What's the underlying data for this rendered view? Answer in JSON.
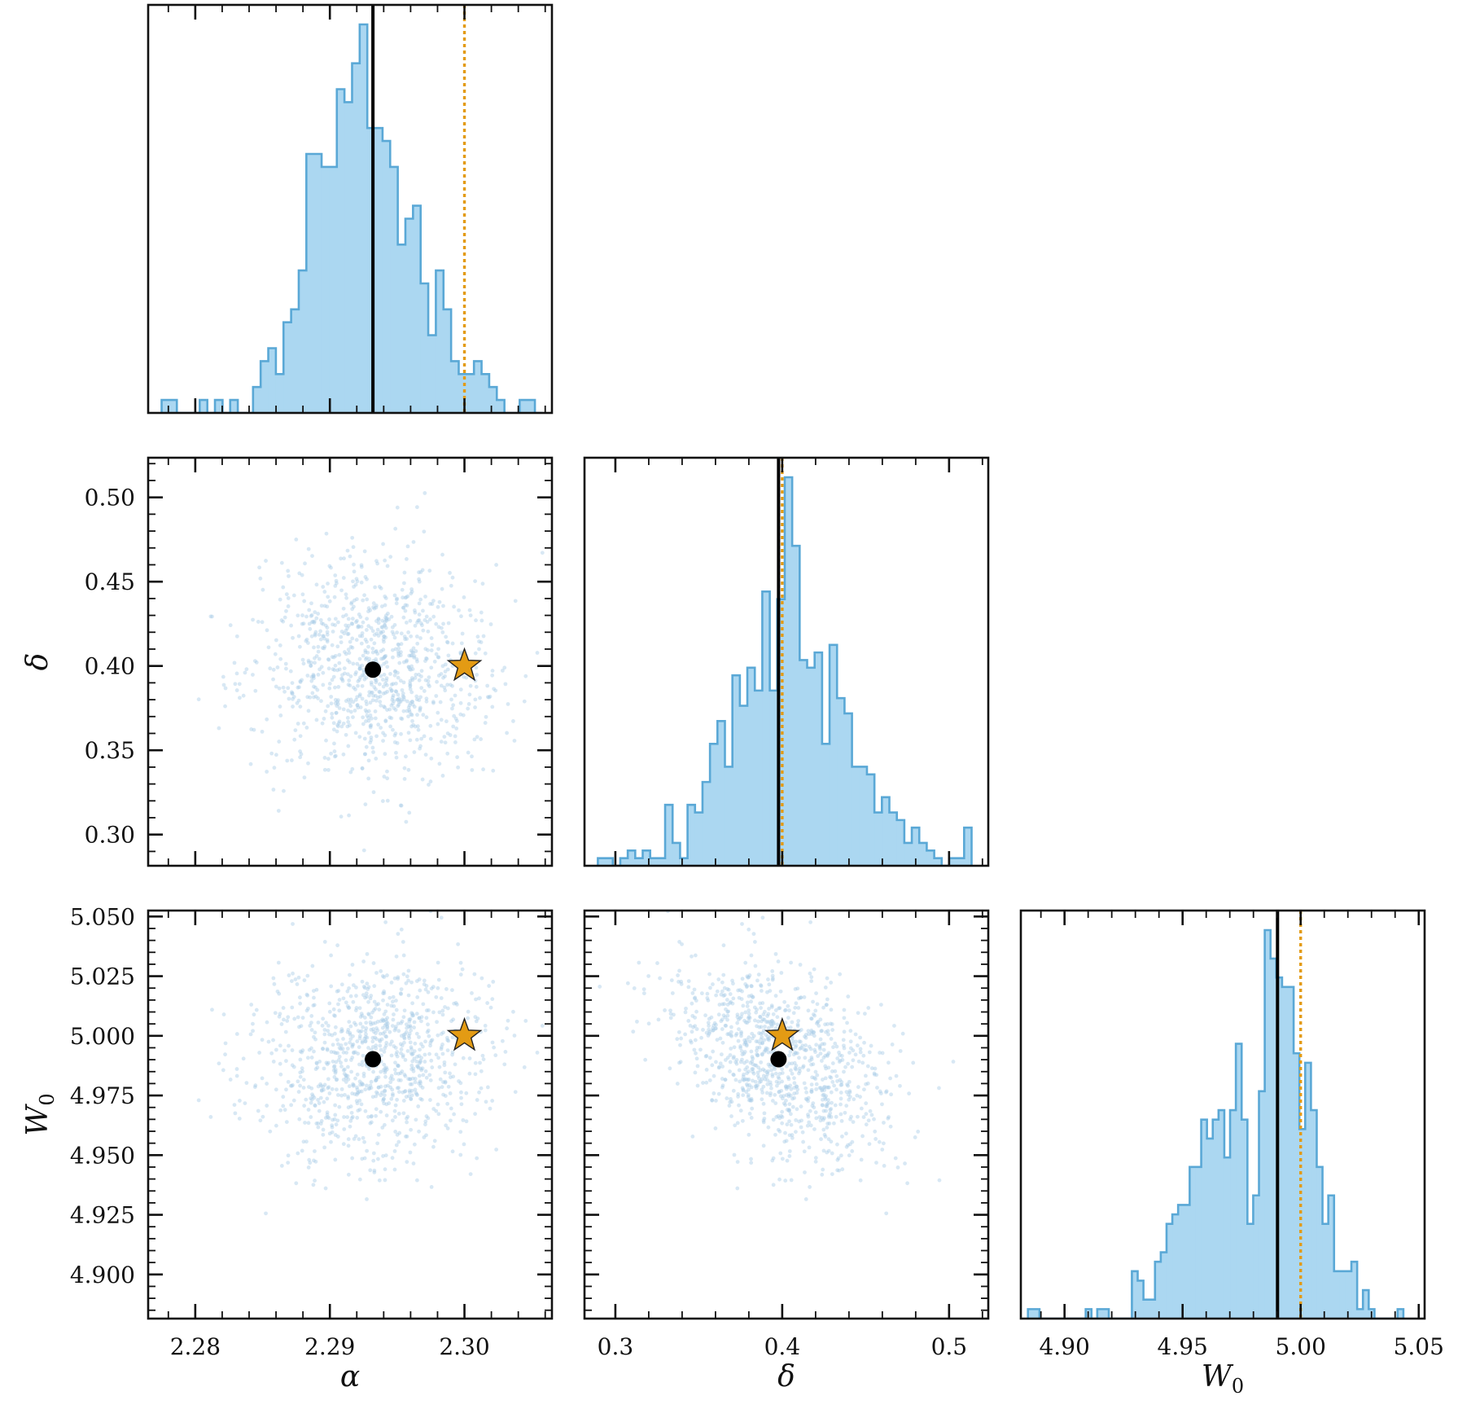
{
  "chart_data": {
    "type": "corner",
    "parameters": [
      {
        "symbol": "α",
        "sub": ""
      },
      {
        "symbol": "δ",
        "sub": ""
      },
      {
        "symbol": "W",
        "sub": "0"
      }
    ],
    "ranges": [
      [
        2.2765,
        2.3065
      ],
      [
        0.2815,
        0.5235
      ],
      [
        4.8815,
        5.0525
      ]
    ],
    "ticks": [
      {
        "values": [
          2.28,
          2.29,
          2.3
        ],
        "labels": [
          "2.28",
          "2.29",
          "2.30"
        ]
      },
      {
        "values": [
          0.3,
          0.35,
          0.4,
          0.45,
          0.5
        ],
        "labels": [
          "0.30",
          "0.35",
          "0.40",
          "0.45",
          "0.50"
        ]
      },
      {
        "values": [
          4.9,
          4.925,
          4.95,
          4.975,
          5.0,
          5.025,
          5.05
        ],
        "labels": [
          "4.900",
          "4.925",
          "4.950",
          "4.975",
          "5.000",
          "5.025",
          "5.050"
        ]
      }
    ],
    "bottom_ticks": [
      {
        "values": [
          2.28,
          2.29,
          2.3
        ],
        "labels": [
          "2.28",
          "2.29",
          "2.30"
        ]
      },
      {
        "values": [
          0.3,
          0.4,
          0.5
        ],
        "labels": [
          "0.3",
          "0.4",
          "0.5"
        ]
      },
      {
        "values": [
          4.9,
          4.95,
          5.0,
          5.05
        ],
        "labels": [
          "4.90",
          "4.95",
          "5.00",
          "5.05"
        ]
      }
    ],
    "estimate": [
      2.2932,
      0.3978,
      4.9902
    ],
    "truth": [
      2.3,
      0.4,
      5.0
    ],
    "histograms": [
      {
        "bins": [
          2.2775,
          2.3058
        ],
        "counts": [
          1,
          1,
          0,
          0,
          0,
          1,
          0,
          1,
          0,
          1,
          0,
          0,
          2,
          4,
          5,
          3,
          7,
          8,
          11,
          20,
          20,
          19,
          19,
          25,
          24,
          27,
          30,
          22,
          22,
          21,
          19,
          13,
          15,
          16,
          10,
          6,
          11,
          8,
          4,
          3,
          3,
          4,
          3,
          2,
          1,
          0,
          0,
          1,
          1,
          0
        ]
      },
      {
        "bins": [
          0.2895,
          0.5135
        ],
        "counts": [
          1,
          1,
          0,
          1,
          2,
          1,
          2,
          1,
          1,
          8,
          3,
          1,
          8,
          7,
          11,
          16,
          19,
          13,
          25,
          21,
          26,
          23,
          36,
          23,
          35,
          51,
          42,
          27,
          26,
          28,
          16,
          29,
          22,
          20,
          13,
          13,
          12,
          7,
          9,
          7,
          6,
          3,
          5,
          3,
          2,
          1,
          0,
          1,
          1,
          5
        ]
      },
      {
        "bins": [
          4.8845,
          5.0435
        ],
        "counts": [
          1,
          1,
          0,
          0,
          0,
          0,
          0,
          0,
          0,
          0,
          1,
          0,
          1,
          1,
          0,
          0,
          0,
          0,
          5,
          4,
          2,
          2,
          6,
          7,
          10,
          11,
          12,
          12,
          16,
          16,
          21,
          19,
          21,
          22,
          17,
          22,
          29,
          21,
          10,
          13,
          24,
          41,
          38,
          36,
          35,
          35,
          28,
          20,
          27,
          22,
          16,
          10,
          13,
          5,
          5,
          5,
          6,
          1,
          3,
          1,
          0,
          0,
          0,
          0,
          1
        ]
      }
    ],
    "scatter_samples": 1000,
    "colors": {
      "hist_fill": "#abd7f1",
      "hist_edge": "#5aa8d6",
      "scatter": "#a9cbe6",
      "estimate": "#000000",
      "truth": "#e39b14",
      "frame": "#111111"
    }
  }
}
